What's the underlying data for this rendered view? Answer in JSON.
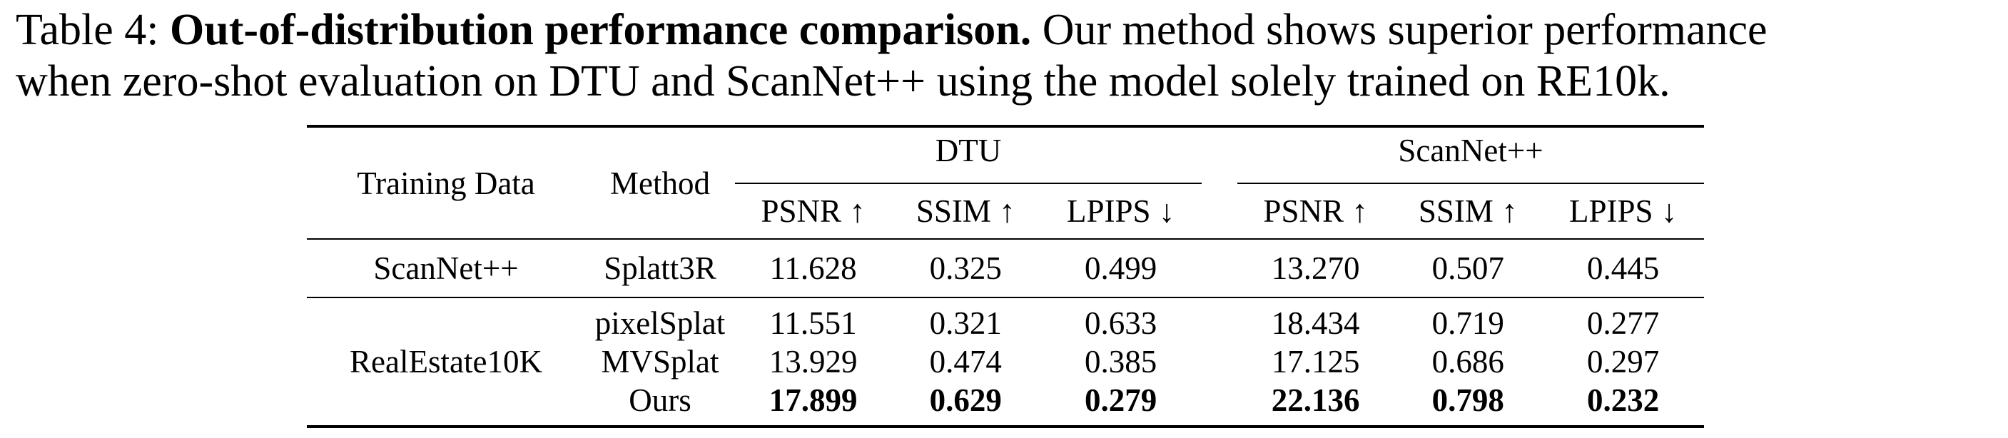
{
  "caption": {
    "prefix": "Table 4: ",
    "bold_title": "Out-of-distribution performance comparison.",
    "line1_rest": " Our method shows superior performance",
    "line2": "when zero-shot evaluation on DTU and ScanNet++ using the model solely trained on RE10k."
  },
  "table": {
    "headers": {
      "training_data": "Training Data",
      "method": "Method",
      "group_dtu": "DTU",
      "group_scannet": "ScanNet++",
      "metrics": [
        "PSNR ↑",
        "SSIM ↑",
        "LPIPS ↓",
        "PSNR ↑",
        "SSIM ↑",
        "LPIPS ↓"
      ]
    },
    "rows": [
      {
        "training": "ScanNet++",
        "method": "Splatt3R",
        "values": [
          "11.628",
          "0.325",
          "0.499",
          "13.270",
          "0.507",
          "0.445"
        ],
        "bold": false
      },
      {
        "training": "",
        "method": "pixelSplat",
        "values": [
          "11.551",
          "0.321",
          "0.633",
          "18.434",
          "0.719",
          "0.277"
        ],
        "bold": false
      },
      {
        "training": "RealEstate10K",
        "method": "MVSplat",
        "values": [
          "13.929",
          "0.474",
          "0.385",
          "17.125",
          "0.686",
          "0.297"
        ],
        "bold": false
      },
      {
        "training": "",
        "method": "Ours",
        "values": [
          "17.899",
          "0.629",
          "0.279",
          "22.136",
          "0.798",
          "0.232"
        ],
        "bold": true
      }
    ]
  }
}
